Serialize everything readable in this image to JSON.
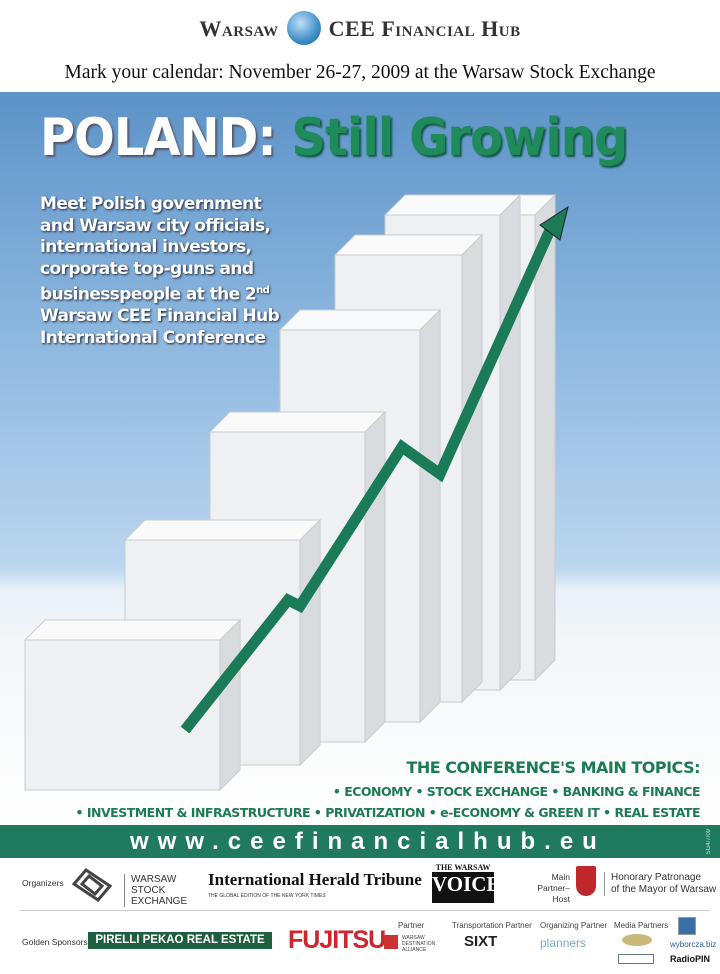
{
  "header": {
    "brand_left": "Warsaw",
    "brand_right": "CEE Financial Hub",
    "tagline": "Mark your calendar: November 26-27, 2009 at the Warsaw Stock Exchange"
  },
  "hero": {
    "title_white": "POLAND:",
    "title_green": "Still Growing",
    "intro_lines": [
      "Meet Polish government",
      "and Warsaw city officials,",
      "international investors,",
      "corporate top-guns and",
      "businesspeople at the 2"
    ],
    "intro_sup": "nd",
    "intro_tail": [
      "Warsaw CEE Financial Hub",
      "International Conference"
    ]
  },
  "topics": {
    "heading": "THE CONFERENCE'S MAIN TOPICS:",
    "line1": "• ECONOMY • STOCK EXCHANGE • BANKING & FINANCE",
    "line2": "• INVESTMENT & INFRASTRUCTURE • PRIVATIZATION • e-ECONOMY & GREEN IT • REAL ESTATE"
  },
  "band": {
    "url": "www.ceefinancialhub.eu",
    "code": "SG4/7/09"
  },
  "colors": {
    "green": "#1f7a5e",
    "accent": "#1f8a5a",
    "sky": "#5d93c8"
  },
  "sponsors": {
    "organizers_label": "Organizers",
    "wse": [
      "WARSAW",
      "STOCK",
      "EXCHANGE"
    ],
    "iht": "International Herald Tribune",
    "iht_sub": "THE GLOBAL EDITION OF THE NEW YORK TIMES",
    "voice_top": "THE WARSAW",
    "voice_main": "VOICE",
    "main_partner": "Main Partner–Host",
    "patronage": [
      "Honorary Patronage",
      "of the Mayor of Warsaw"
    ],
    "golden_label": "Golden Sponsors",
    "pirelli": "PIRELLI PEKAO REAL ESTATE",
    "fujitsu": "FUJITSU",
    "partner_label": "Partner",
    "wda": "WARSAW DESTINATION ALLIANCE",
    "transport_label": "Transportation Partner",
    "sixt": "SIXT",
    "organizing_label": "Organizing Partner",
    "planners": "planners",
    "media_label": "Media Partners",
    "media": [
      "wyborcza.biz",
      "RadioPIN"
    ]
  }
}
